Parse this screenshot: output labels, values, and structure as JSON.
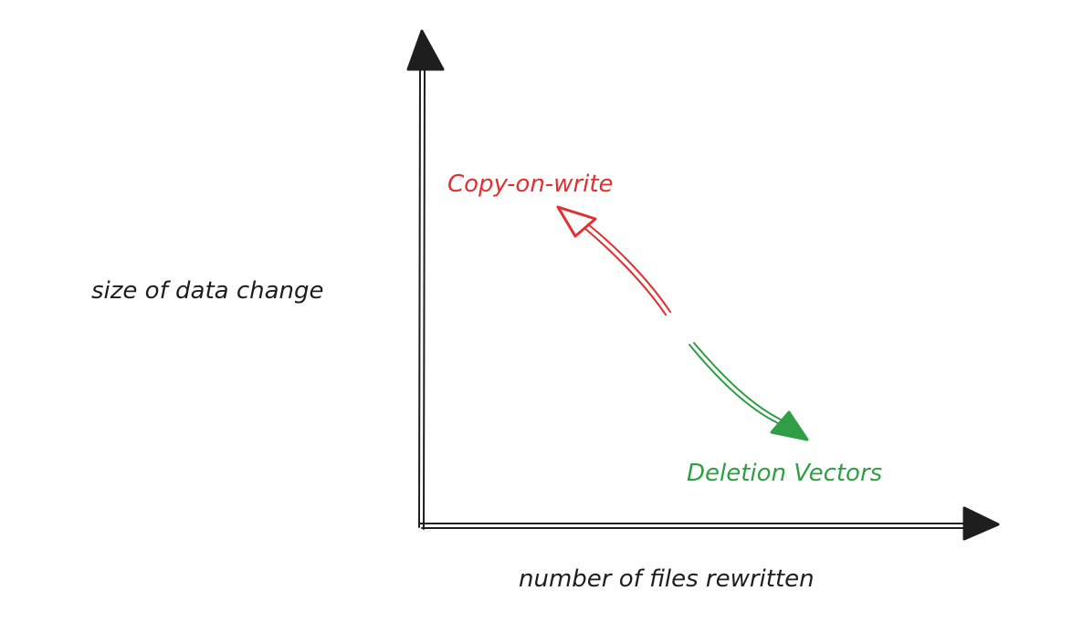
{
  "labels": {
    "y_axis": "size of data change",
    "x_axis": "number of files rewritten",
    "copy_on_write": "Copy-on-write",
    "deletion_vectors": "Deletion Vectors"
  },
  "colors": {
    "ink": "#1e1e1e",
    "copy_on_write": "#e03131",
    "deletion_vectors": "#2f9e44",
    "background": "#ffffff"
  }
}
